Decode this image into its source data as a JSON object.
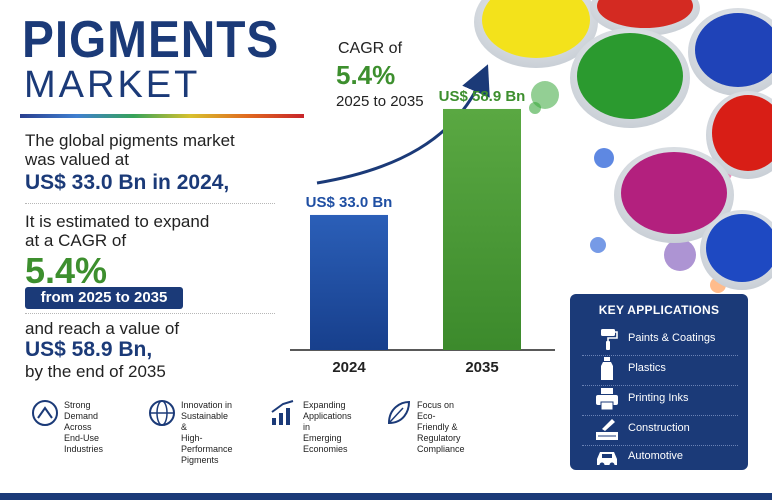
{
  "header": {
    "title": "PIGMENTS",
    "subtitle": "MARKET"
  },
  "summary": {
    "line1": "The global pigments market",
    "line2": "was valued at",
    "value_2024": "US$ 33.0 Bn in 2024,",
    "line3": "It is estimated to expand",
    "line4": "at a CAGR of",
    "cagr": "5.4%",
    "period": "from 2025 to 2035",
    "line5": "and reach a value of",
    "value_2035": "US$ 58.9 Bn,",
    "line6": "by the end of 2035"
  },
  "callout": {
    "label": "CAGR of",
    "value": "5.4%",
    "range": "2025 to 2035"
  },
  "chart_data": {
    "type": "bar",
    "categories": [
      "2024",
      "2035"
    ],
    "values": [
      33.0,
      58.9
    ],
    "data_labels": [
      "US$ 33.0 Bn",
      "US$ 58.9 Bn"
    ],
    "colors": [
      "#1f4fa3",
      "#4a9a35"
    ],
    "ylim": [
      0,
      65
    ],
    "title": "",
    "xlabel": "",
    "ylabel": ""
  },
  "applications": {
    "title": "KEY APPLICATIONS",
    "items": [
      {
        "label": "Paints & Coatings",
        "icon": "paint-roller-icon"
      },
      {
        "label": "Plastics",
        "icon": "plastic-bottle-icon"
      },
      {
        "label": "Printing Inks",
        "icon": "printer-icon"
      },
      {
        "label": "Construction",
        "icon": "trowel-icon"
      },
      {
        "label": "Automotive",
        "icon": "car-icon"
      }
    ]
  },
  "features": [
    {
      "lines": [
        "Strong Demand",
        "Across End-Use",
        "Industries"
      ],
      "icon": "demand-icon"
    },
    {
      "lines": [
        "Innovation in",
        "Sustainable &",
        "High-Performance",
        "Pigments"
      ],
      "icon": "globe-icon"
    },
    {
      "lines": [
        "Expanding",
        "Applications in",
        "Emerging",
        "Economies"
      ],
      "icon": "growth-chart-icon"
    },
    {
      "lines": [
        "Focus on",
        "Eco-Friendly &",
        "Regulatory",
        "Compliance"
      ],
      "icon": "leaf-icon"
    }
  ],
  "colors": {
    "navy": "#1b3a78",
    "green": "#3d8f2e",
    "bar_2024": "#1f4fa3",
    "bar_2035": "#4a9a35"
  }
}
